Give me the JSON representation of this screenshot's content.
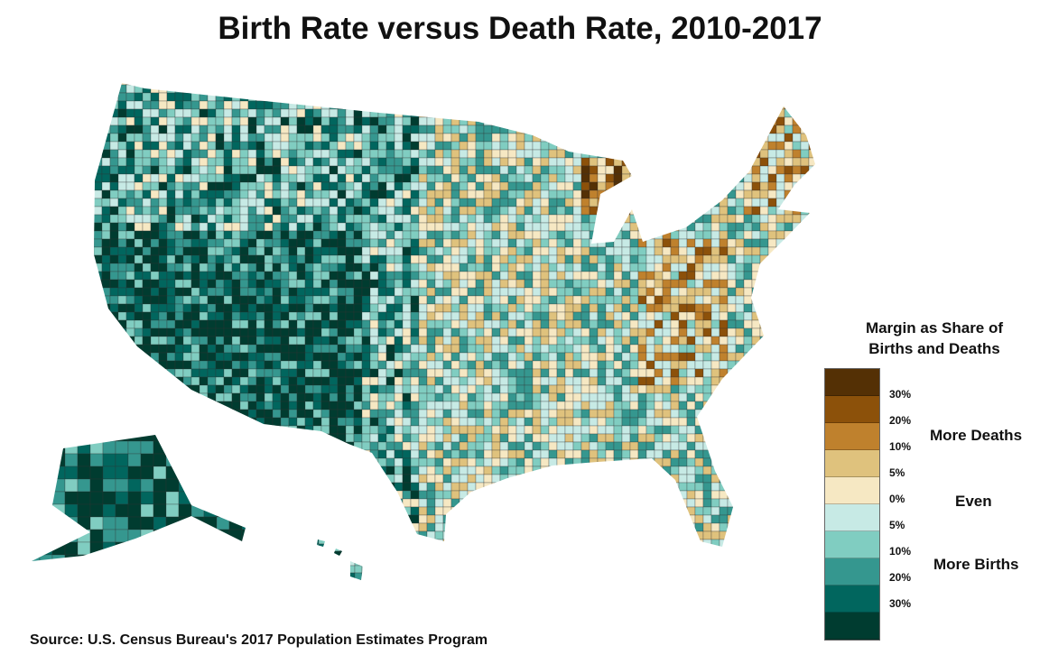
{
  "title": "Birth Rate versus Death Rate, 2010-2017",
  "legend": {
    "title_line1": "Margin as Share of",
    "title_line2": "Births and Deaths",
    "colors": [
      "#543005",
      "#8c510a",
      "#bf812d",
      "#dfc27d",
      "#f6e8c3",
      "#c7eae5",
      "#80cdc1",
      "#35978f",
      "#01665e",
      "#003c30"
    ],
    "ticks": [
      "30%",
      "20%",
      "10%",
      "5%",
      "0%",
      "5%",
      "10%",
      "20%",
      "30%"
    ],
    "groups": {
      "deaths": "More Deaths",
      "even": "Even",
      "births": "More Births"
    }
  },
  "source": "Source: U.S. Census Bureau's 2017 Population Estimates Program"
}
